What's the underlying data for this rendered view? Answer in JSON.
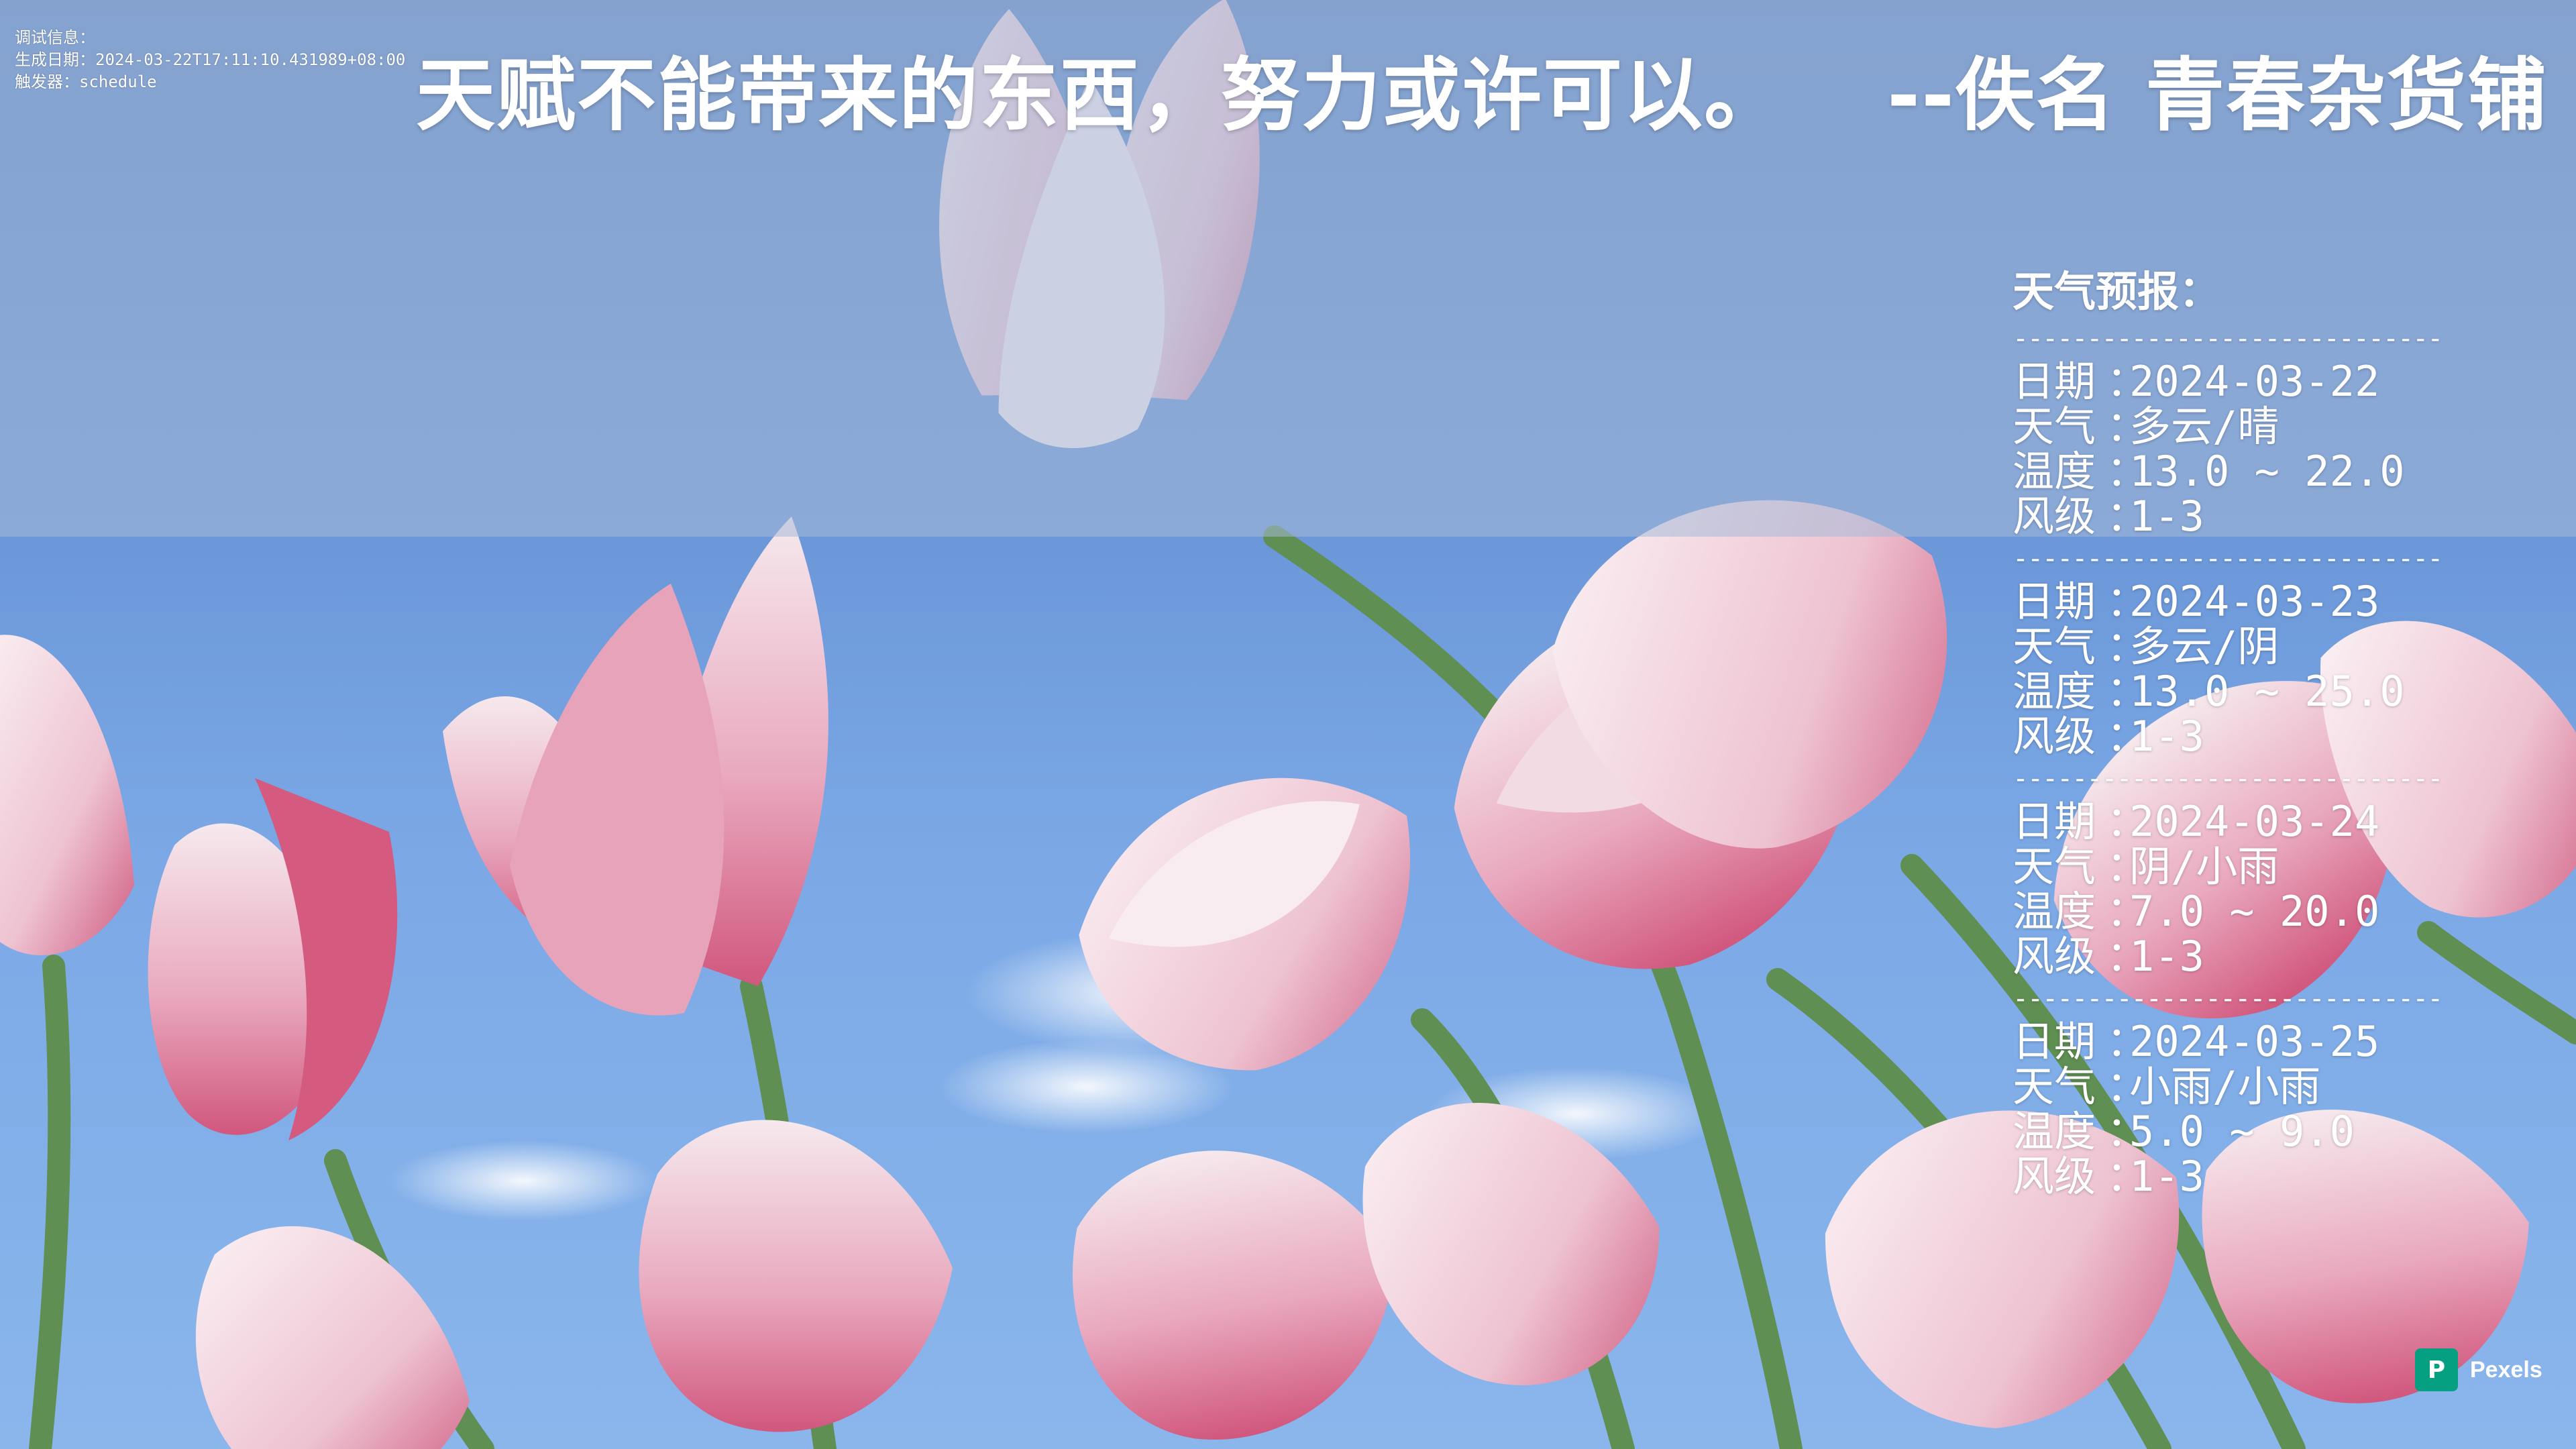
{
  "debug": {
    "label": "调试信息：",
    "generated_line": "生成日期：2024-03-22T17:11:10.431989+08:00",
    "trigger_line": "触发器：schedule"
  },
  "quote": {
    "text": "天赋不能带来的东西，努力或许可以。",
    "author": "--佚名 青春杂货铺"
  },
  "weather": {
    "title": "天气预报：",
    "divider": "--------------------------------",
    "labels": {
      "date": "日期",
      "weather": "天气",
      "temp": "温度",
      "wind": "风级",
      "colon": "："
    },
    "days": [
      {
        "date": "2024-03-22",
        "weather": "多云/晴",
        "temp": "13.0 ~ 22.0",
        "wind": "1-3"
      },
      {
        "date": "2024-03-23",
        "weather": "多云/阴",
        "temp": "13.0 ~ 25.0",
        "wind": "1-3"
      },
      {
        "date": "2024-03-24",
        "weather": "阴/小雨",
        "temp": "7.0 ~ 20.0",
        "wind": "1-3"
      },
      {
        "date": "2024-03-25",
        "weather": "小雨/小雨",
        "temp": "5.0 ~ 9.0",
        "wind": "1-3"
      }
    ]
  },
  "watermark": {
    "brand": "Pexels",
    "logo_glyph": "P",
    "logo_color": "#05a081"
  },
  "colors": {
    "sky": "#6a96d8",
    "petal_pink": "#d8577f",
    "petal_white": "#f4e4ea",
    "stem_green": "#5f8f52"
  }
}
